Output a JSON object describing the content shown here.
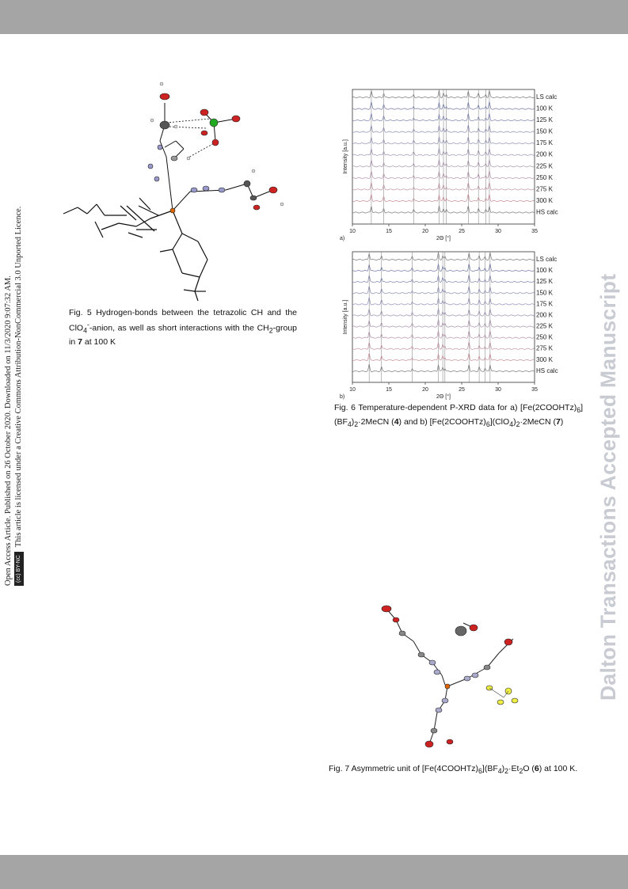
{
  "side_notice": {
    "line1": "Open Access Article. Published on 26 October 2020. Downloaded on 11/3/2020 9:07:32 AM.",
    "line2": "This article is licensed under a Creative Commons Attribution-NonCommercial 3.0 Unported Licence.",
    "badge": "BY-NC"
  },
  "watermark": "Dalton Transactions Accepted Manuscript",
  "fig5": {
    "caption_parts": [
      "Fig. 5 Hydrogen-bonds between the tetrazolic CH and the ClO",
      "4",
      "-",
      "-anion, as well as short interactions with the CH",
      "2",
      "-group in ",
      "7",
      " at 100 K"
    ]
  },
  "fig6": {
    "caption_parts": [
      "Fig. 6 Temperature-dependent P-XRD data for a) [Fe(2COOHTz)",
      "6",
      "](BF",
      "4",
      ")",
      "2",
      "·2MeCN (",
      "4",
      ") and b) [Fe(2COOHTz)",
      "6",
      "](ClO",
      "4",
      ")",
      "2",
      "·2MeCN (",
      "7",
      ")"
    ]
  },
  "fig7": {
    "caption_parts": [
      "Fig. 7 Asymmetric unit of [Fe(4COOHTz)",
      "6",
      "](BF",
      "4",
      ")",
      "2",
      "·Et",
      "2",
      "O (",
      "6",
      ") at 100 K."
    ]
  },
  "chart_data": [
    {
      "type": "line",
      "panel_label": "a)",
      "xlabel": "2Θ [°]",
      "ylabel": "Intensity [a.u.]",
      "xlim": [
        10,
        35
      ],
      "x_ticks": [
        "10",
        "15",
        "20",
        "25",
        "30",
        "35"
      ],
      "series": [
        {
          "name": "LS calc",
          "color": "#7a7a7a"
        },
        {
          "name": "100 K",
          "color": "#6f78a8"
        },
        {
          "name": "125 K",
          "color": "#7a80ad"
        },
        {
          "name": "150 K",
          "color": "#8487b0"
        },
        {
          "name": "175 K",
          "color": "#8e8db3"
        },
        {
          "name": "200 K",
          "color": "#9b8fb0"
        },
        {
          "name": "225 K",
          "color": "#a790ab"
        },
        {
          "name": "250 K",
          "color": "#b390a6"
        },
        {
          "name": "275 K",
          "color": "#bf8f9f"
        },
        {
          "name": "300 K",
          "color": "#c98c97"
        },
        {
          "name": "HS calc",
          "color": "#7a7a7a"
        }
      ],
      "peaks": [
        12.6,
        14.3,
        18.4,
        21.9,
        22.5,
        22.9,
        25.9,
        27.3,
        28.3,
        28.8
      ]
    },
    {
      "type": "line",
      "panel_label": "b)",
      "xlabel": "2Θ [°]",
      "ylabel": "Intensity [a.u.]",
      "xlim": [
        10,
        35
      ],
      "x_ticks": [
        "10",
        "15",
        "20",
        "25",
        "30",
        "35"
      ],
      "series": [
        {
          "name": "LS calc",
          "color": "#7a7a7a"
        },
        {
          "name": "100 K",
          "color": "#6f78a8"
        },
        {
          "name": "125 K",
          "color": "#7a80ad"
        },
        {
          "name": "150 K",
          "color": "#8487b0"
        },
        {
          "name": "175 K",
          "color": "#8e8db3"
        },
        {
          "name": "200 K",
          "color": "#9b8fb0"
        },
        {
          "name": "225 K",
          "color": "#a790ab"
        },
        {
          "name": "250 K",
          "color": "#b390a6"
        },
        {
          "name": "275 K",
          "color": "#bf8f9f"
        },
        {
          "name": "300 K",
          "color": "#c98c97"
        },
        {
          "name": "HS calc",
          "color": "#7a7a7a"
        }
      ],
      "peaks": [
        12.3,
        14.0,
        18.2,
        21.8,
        22.4,
        22.7,
        26.0,
        27.4,
        28.2,
        28.9
      ]
    }
  ]
}
